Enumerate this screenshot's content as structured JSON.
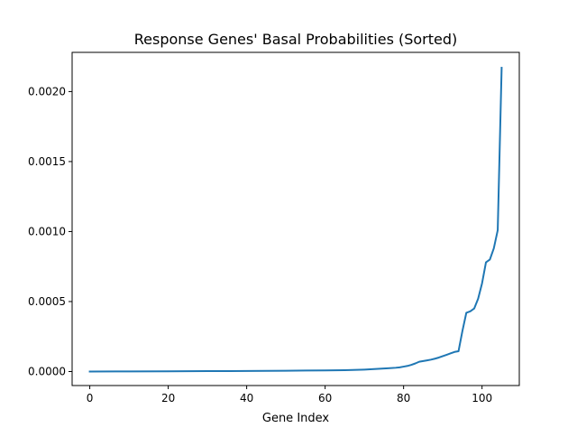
{
  "chart_data": {
    "type": "line",
    "title": "Response Genes' Basal Probabilities (Sorted)",
    "xlabel": "Gene Index",
    "ylabel": "",
    "xlim": [
      -4.5,
      109.5
    ],
    "ylim": [
      -0.0001,
      0.00228
    ],
    "x_ticks": [
      0,
      20,
      40,
      60,
      80,
      100
    ],
    "x_tick_labels": [
      "0",
      "20",
      "40",
      "60",
      "80",
      "100"
    ],
    "y_ticks": [
      0.0,
      0.0005,
      0.001,
      0.0015,
      0.002
    ],
    "y_tick_labels": [
      "0.0000",
      "0.0005",
      "0.0010",
      "0.0015",
      "0.0020"
    ],
    "grid": false,
    "series": [
      {
        "color": "#1f77b4",
        "x": [
          0,
          10,
          20,
          30,
          40,
          45,
          50,
          55,
          60,
          65,
          68,
          70,
          72,
          74,
          76,
          78,
          79,
          80,
          81,
          82,
          83,
          84,
          85,
          86,
          87,
          88,
          89,
          90,
          91,
          92,
          93,
          94,
          95,
          96,
          97,
          98,
          99,
          100,
          101,
          102,
          103,
          104,
          105
        ],
        "y": [
          0.0,
          1e-06,
          2e-06,
          3e-06,
          4e-06,
          5e-06,
          6e-06,
          7e-06,
          8e-06,
          1e-05,
          1.2e-05,
          1.4e-05,
          1.7e-05,
          2e-05,
          2.3e-05,
          2.7e-05,
          3e-05,
          3.5e-05,
          4e-05,
          4.8e-05,
          5.8e-05,
          7e-05,
          7.5e-05,
          8e-05,
          8.5e-05,
          9.2e-05,
          0.0001,
          0.00011,
          0.00012,
          0.00013,
          0.00014,
          0.000145,
          0.00029,
          0.00042,
          0.00043,
          0.00045,
          0.00052,
          0.00063,
          0.00078,
          0.0008,
          0.00088,
          0.00101,
          0.00217
        ]
      }
    ]
  }
}
